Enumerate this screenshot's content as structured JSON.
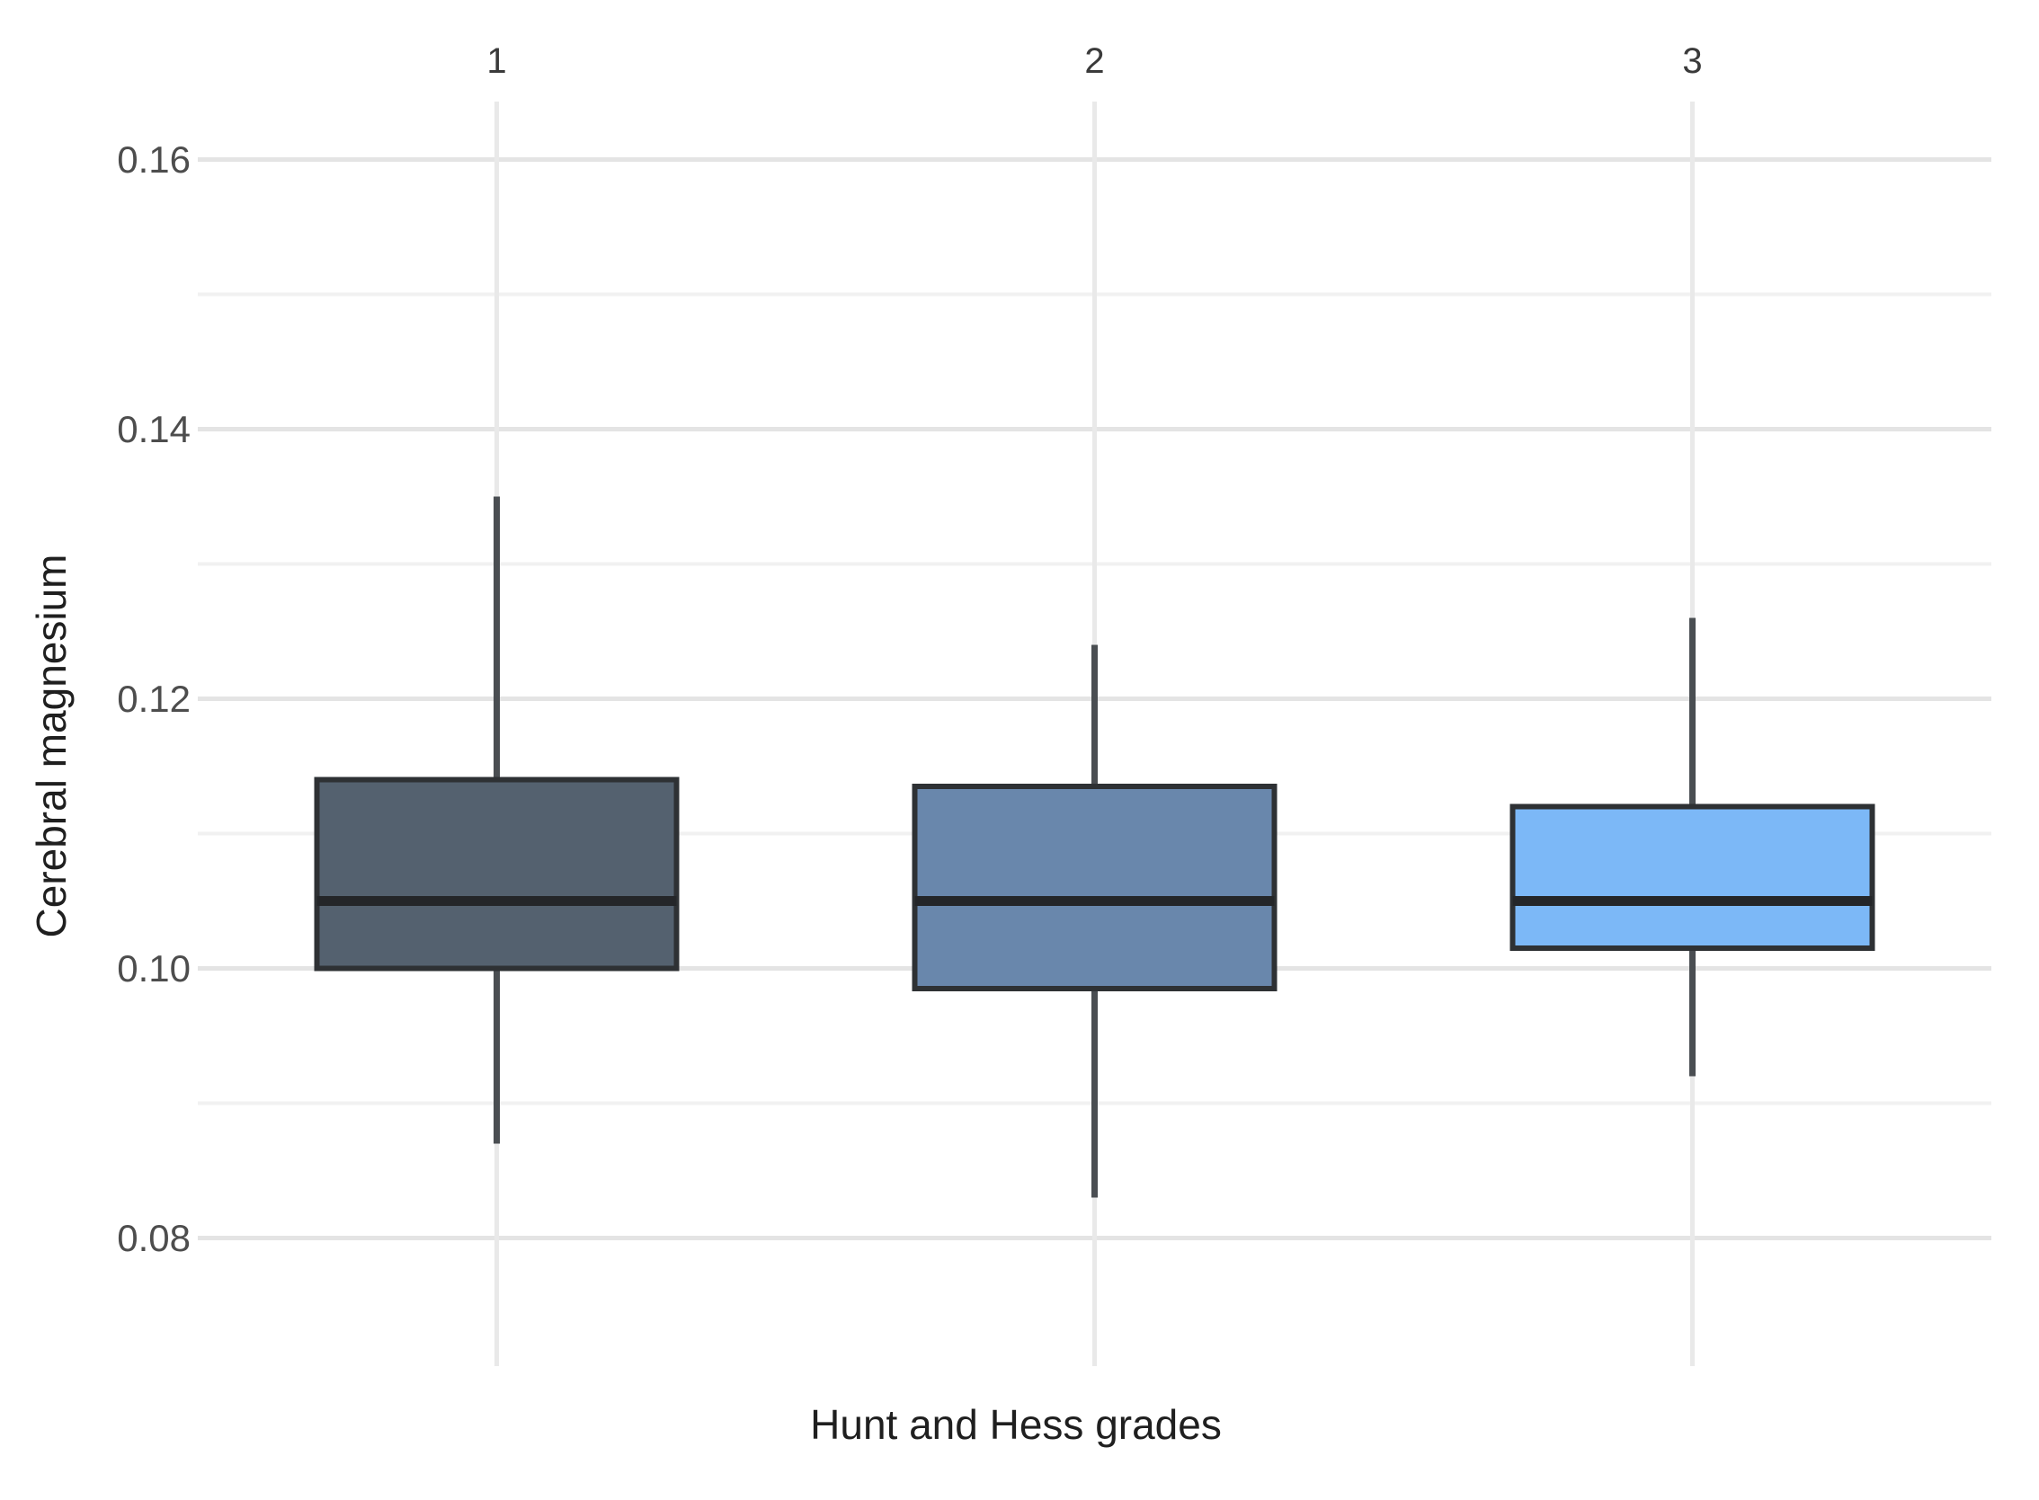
{
  "chart_data": {
    "type": "box",
    "orientation": "vertical",
    "title": "",
    "xlabel": "Hunt and Hess grades",
    "ylabel": "Cerebral magnesium",
    "x_label_position": "top",
    "categories": [
      "1",
      "2",
      "3"
    ],
    "series": [
      {
        "name": "Hunt and Hess grade 1",
        "category": "1",
        "whisker_min": 0.087,
        "q1": 0.1,
        "median": 0.105,
        "q3": 0.114,
        "whisker_max": 0.135,
        "fill": "#54616F"
      },
      {
        "name": "Hunt and Hess grade 2",
        "category": "2",
        "whisker_min": 0.083,
        "q1": 0.0985,
        "median": 0.105,
        "q3": 0.1135,
        "whisker_max": 0.124,
        "fill": "#6987AC"
      },
      {
        "name": "Hunt and Hess grade 3",
        "category": "3",
        "whisker_min": 0.092,
        "q1": 0.1015,
        "median": 0.105,
        "q3": 0.112,
        "whisker_max": 0.126,
        "fill": "#7CB8F7"
      }
    ],
    "y_axis": {
      "ticks": [
        {
          "value": 0.16,
          "label": "0.16"
        },
        {
          "value": 0.14,
          "label": "0.14"
        },
        {
          "value": 0.12,
          "label": "0.12"
        },
        {
          "value": 0.1,
          "label": "0.10"
        },
        {
          "value": 0.08,
          "label": "0.08"
        }
      ],
      "minor_ticks": [
        0.15,
        0.13,
        0.11,
        0.09
      ],
      "range": {
        "min": 0.0705,
        "max": 0.1643
      }
    },
    "grid": {
      "show": true,
      "major_color": "#E4E4E4",
      "minor_color": "#F1F1F1",
      "vertical_color": "#E9E9E9"
    },
    "style": {
      "background": "#FFFFFF",
      "box_border_color": "#2E3134",
      "median_color": "#242629",
      "whisker_color": "#4A4E52",
      "tick_label_color": "#4D4D4D",
      "category_label_color": "#3A3A3A",
      "axis_title_color": "#1F1F1F"
    },
    "legend": null
  }
}
